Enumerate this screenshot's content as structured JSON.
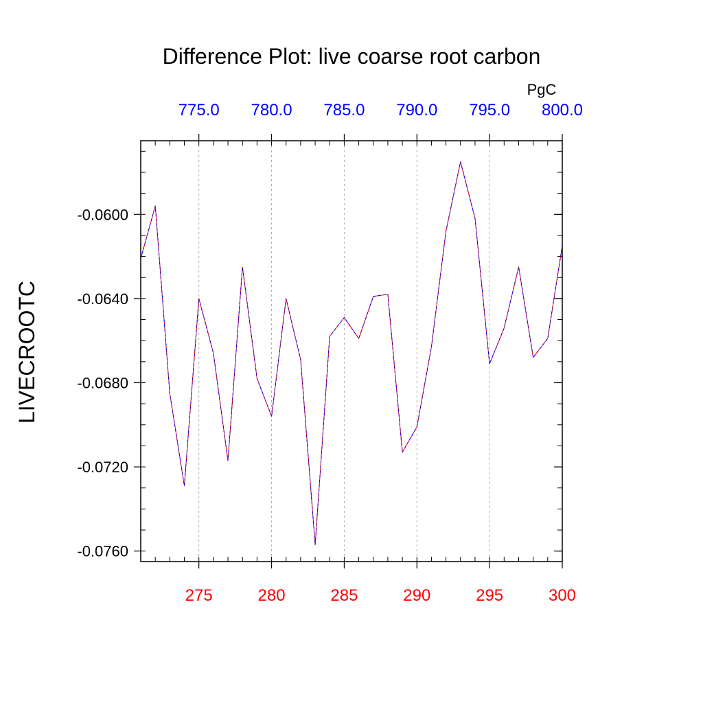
{
  "chart_data": {
    "type": "line",
    "title": "Difference Plot: live coarse root carbon",
    "ylabel": "LIVECROOTC",
    "units_label": "PgC",
    "xlim": [
      271,
      300
    ],
    "ylim": [
      -0.0765,
      -0.0565
    ],
    "grid": "vertical-dashed",
    "colors": {
      "bottom_axis": "#ff0000",
      "top_axis": "#0000ff",
      "line_a": "#ff0000",
      "line_b": "#0000ff",
      "grid": "#aaaaaa"
    },
    "bottom_ticks": [
      {
        "value": 275,
        "label": "275"
      },
      {
        "value": 280,
        "label": "280"
      },
      {
        "value": 285,
        "label": "285"
      },
      {
        "value": 290,
        "label": "290"
      },
      {
        "value": 295,
        "label": "295"
      },
      {
        "value": 300,
        "label": "300"
      }
    ],
    "top_ticks": [
      {
        "value": 275,
        "label": "775.0"
      },
      {
        "value": 280,
        "label": "780.0"
      },
      {
        "value": 285,
        "label": "785.0"
      },
      {
        "value": 290,
        "label": "790.0"
      },
      {
        "value": 295,
        "label": "795.0"
      },
      {
        "value": 300,
        "label": "800.0"
      }
    ],
    "y_ticks": [
      {
        "value": -0.06,
        "label": "-0.0600"
      },
      {
        "value": -0.064,
        "label": "-0.0640"
      },
      {
        "value": -0.068,
        "label": "-0.0680"
      },
      {
        "value": -0.072,
        "label": "-0.0720"
      },
      {
        "value": -0.076,
        "label": "-0.0760"
      }
    ],
    "x": [
      271,
      272,
      273,
      274,
      275,
      276,
      277,
      278,
      279,
      280,
      281,
      282,
      283,
      284,
      285,
      286,
      287,
      288,
      289,
      290,
      291,
      292,
      293,
      294,
      295,
      296,
      297,
      298,
      299,
      300
    ],
    "series": [
      {
        "name": "difference",
        "values": [
          -0.0621,
          -0.0596,
          -0.0685,
          -0.0729,
          -0.064,
          -0.0666,
          -0.0717,
          -0.0625,
          -0.0678,
          -0.0696,
          -0.064,
          -0.0669,
          -0.0757,
          -0.0658,
          -0.0649,
          -0.0659,
          -0.0639,
          -0.0638,
          -0.0713,
          -0.0701,
          -0.0663,
          -0.0608,
          -0.0575,
          -0.0602,
          -0.0671,
          -0.0654,
          -0.0625,
          -0.0668,
          -0.0659,
          -0.0615
        ]
      }
    ]
  }
}
